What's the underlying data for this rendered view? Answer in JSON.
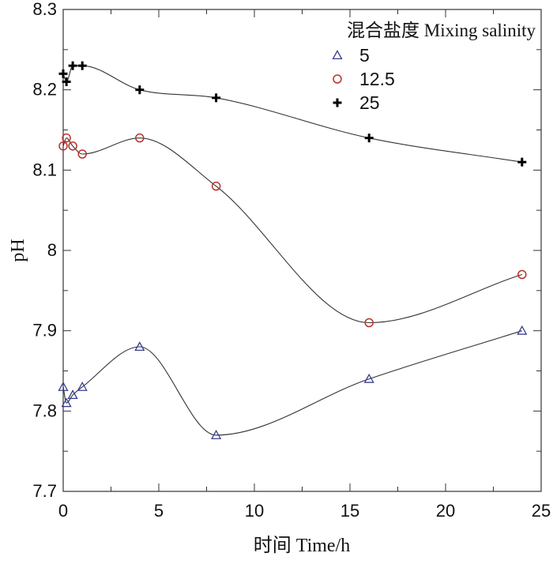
{
  "chart_data": {
    "type": "line",
    "title": "",
    "xlabel": "时间 Time/h",
    "ylabel": "pH",
    "xlim": [
      0,
      25
    ],
    "ylim": [
      7.7,
      8.3
    ],
    "xticks": [
      0,
      5,
      10,
      15,
      20,
      25
    ],
    "xtick_labels": [
      "0",
      "5",
      "10",
      "15",
      "20",
      "25"
    ],
    "yticks": [
      7.7,
      7.8,
      7.9,
      8.0,
      8.1,
      8.2,
      8.3
    ],
    "ytick_labels": [
      "7.7",
      "7.8",
      "7.9",
      "8",
      "8.1",
      "8.2",
      "8.3"
    ],
    "grid": false,
    "legend": {
      "title": "混合盐度 Mixing salinity",
      "position": "top-right"
    },
    "series": [
      {
        "name": "5",
        "marker": "triangle",
        "color": "#3a3f8f",
        "x": [
          0,
          0.17,
          0.5,
          1,
          4,
          8,
          16,
          24
        ],
        "y": [
          7.83,
          7.81,
          7.82,
          7.83,
          7.88,
          7.77,
          7.84,
          7.9
        ]
      },
      {
        "name": "12.5",
        "marker": "circle",
        "color": "#b8322c",
        "x": [
          0,
          0.17,
          0.5,
          1,
          4,
          8,
          16,
          24
        ],
        "y": [
          8.13,
          8.14,
          8.13,
          8.12,
          8.14,
          8.08,
          7.91,
          7.97
        ]
      },
      {
        "name": "25",
        "marker": "plus",
        "color": "#000000",
        "x": [
          0,
          0.17,
          0.5,
          1,
          4,
          8,
          16,
          24
        ],
        "y": [
          8.22,
          8.21,
          8.23,
          8.23,
          8.2,
          8.19,
          8.14,
          8.11
        ]
      }
    ]
  }
}
